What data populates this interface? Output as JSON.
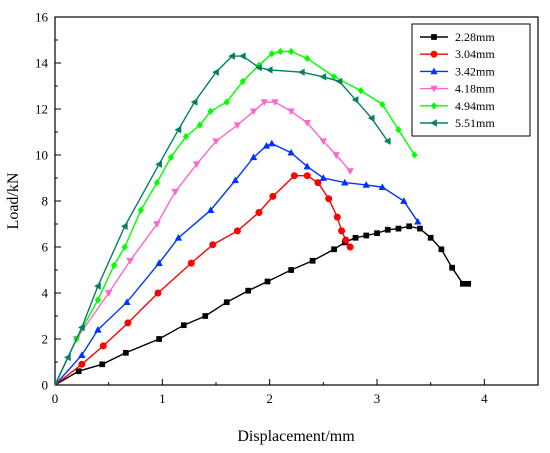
{
  "chart_data": {
    "type": "line",
    "xlabel": "Displacement/mm",
    "ylabel": "Load/kN",
    "xlim": [
      0,
      4.5
    ],
    "ylim": [
      0,
      16
    ],
    "xticks": [
      "0",
      "1",
      "2",
      "3",
      "4"
    ],
    "yticks": [
      "0",
      "2",
      "4",
      "6",
      "8",
      "10",
      "12",
      "14",
      "16"
    ],
    "legend_position": "top-right",
    "series": [
      {
        "name": "2.28mm",
        "color": "#000000",
        "marker": "square",
        "x": [
          0,
          0.22,
          0.44,
          0.66,
          0.97,
          1.2,
          1.4,
          1.6,
          1.8,
          1.98,
          2.2,
          2.4,
          2.6,
          2.7,
          2.8,
          2.9,
          3.0,
          3.1,
          3.2,
          3.3,
          3.4,
          3.5,
          3.6,
          3.7,
          3.8,
          3.85
        ],
        "y": [
          0,
          0.6,
          0.9,
          1.4,
          2.0,
          2.6,
          3.0,
          3.6,
          4.1,
          4.5,
          5.0,
          5.4,
          5.9,
          6.2,
          6.4,
          6.5,
          6.6,
          6.75,
          6.8,
          6.9,
          6.8,
          6.4,
          5.9,
          5.1,
          4.4,
          4.4
        ]
      },
      {
        "name": "3.04mm",
        "color": "#ff0000",
        "marker": "circle",
        "x": [
          0,
          0.25,
          0.45,
          0.68,
          0.96,
          1.27,
          1.47,
          1.7,
          1.9,
          2.03,
          2.23,
          2.35,
          2.45,
          2.55,
          2.63,
          2.67,
          2.71,
          2.75
        ],
        "y": [
          0,
          0.9,
          1.7,
          2.7,
          4.0,
          5.3,
          6.1,
          6.7,
          7.5,
          8.2,
          9.1,
          9.1,
          8.8,
          8.1,
          7.3,
          6.7,
          6.3,
          6.0
        ]
      },
      {
        "name": "3.42mm",
        "color": "#0033ff",
        "marker": "triangle-up",
        "x": [
          0,
          0.25,
          0.4,
          0.67,
          0.97,
          1.15,
          1.45,
          1.68,
          1.85,
          1.97,
          2.02,
          2.2,
          2.35,
          2.5,
          2.7,
          2.9,
          3.05,
          3.25,
          3.38
        ],
        "y": [
          0,
          1.3,
          2.4,
          3.6,
          5.3,
          6.4,
          7.6,
          8.9,
          9.9,
          10.4,
          10.5,
          10.1,
          9.5,
          9.0,
          8.8,
          8.7,
          8.6,
          8.0,
          7.1
        ]
      },
      {
        "name": "4.18mm",
        "color": "#ff66cc",
        "marker": "triangle-down",
        "x": [
          0,
          0.2,
          0.5,
          0.7,
          0.95,
          1.12,
          1.32,
          1.5,
          1.7,
          1.85,
          1.95,
          2.05,
          2.2,
          2.35,
          2.5,
          2.62,
          2.75
        ],
        "y": [
          0,
          2.0,
          4.0,
          5.4,
          7.0,
          8.4,
          9.6,
          10.6,
          11.3,
          11.9,
          12.3,
          12.3,
          11.9,
          11.4,
          10.6,
          10.0,
          9.3
        ]
      },
      {
        "name": "4.94mm",
        "color": "#00ff00",
        "marker": "diamond",
        "x": [
          0,
          0.2,
          0.4,
          0.55,
          0.65,
          0.8,
          0.95,
          1.08,
          1.22,
          1.35,
          1.45,
          1.6,
          1.75,
          1.9,
          2.02,
          2.1,
          2.2,
          2.35,
          2.6,
          2.85,
          3.05,
          3.2,
          3.35
        ],
        "y": [
          0,
          2.0,
          3.7,
          5.2,
          6.0,
          7.6,
          8.8,
          9.9,
          10.8,
          11.3,
          11.9,
          12.3,
          13.2,
          13.9,
          14.4,
          14.5,
          14.5,
          14.2,
          13.4,
          12.8,
          12.2,
          11.1,
          10.0
        ]
      },
      {
        "name": "5.51mm",
        "color": "#008060",
        "marker": "triangle-left",
        "x": [
          0,
          0.12,
          0.25,
          0.4,
          0.65,
          0.97,
          1.15,
          1.3,
          1.5,
          1.65,
          1.75,
          1.9,
          2.0,
          2.3,
          2.5,
          2.65,
          2.8,
          2.95,
          3.1
        ],
        "y": [
          0,
          1.2,
          2.5,
          4.3,
          6.9,
          9.6,
          11.1,
          12.3,
          13.6,
          14.3,
          14.3,
          13.8,
          13.7,
          13.6,
          13.4,
          13.2,
          12.4,
          11.6,
          10.6
        ]
      }
    ]
  }
}
